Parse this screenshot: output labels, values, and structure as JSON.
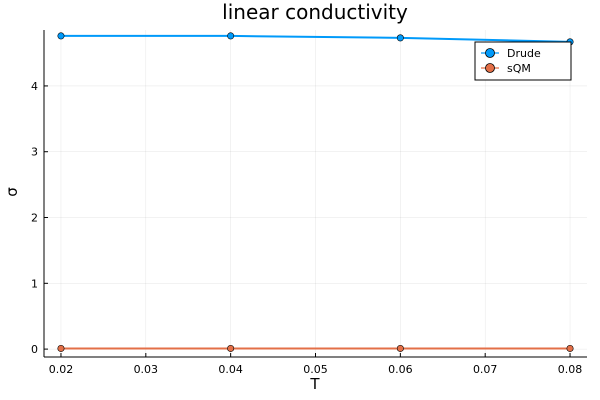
{
  "chart_data": {
    "type": "line",
    "title": "linear conductivity",
    "xlabel": "T",
    "ylabel": "σ",
    "xlim": [
      0.018,
      0.082
    ],
    "ylim": [
      -0.12,
      4.85
    ],
    "xticks": [
      0.02,
      0.03,
      0.04,
      0.05,
      0.06,
      0.07,
      0.08
    ],
    "xtick_labels": [
      "0.02",
      "0.03",
      "0.04",
      "0.05",
      "0.06",
      "0.07",
      "0.08"
    ],
    "yticks": [
      0,
      1,
      2,
      3,
      4
    ],
    "ytick_labels": [
      "0",
      "1",
      "2",
      "3",
      "4"
    ],
    "grid": true,
    "legend_position": "top-right",
    "series": [
      {
        "name": "Drude",
        "color": "#009AFA",
        "marker": "circle",
        "x": [
          0.02,
          0.04,
          0.06,
          0.08
        ],
        "y": [
          4.76,
          4.76,
          4.73,
          4.67
        ]
      },
      {
        "name": "sQM",
        "color": "#E36F47",
        "marker": "circle",
        "x": [
          0.02,
          0.04,
          0.06,
          0.08
        ],
        "y": [
          0.01,
          0.01,
          0.01,
          0.01
        ]
      }
    ]
  }
}
